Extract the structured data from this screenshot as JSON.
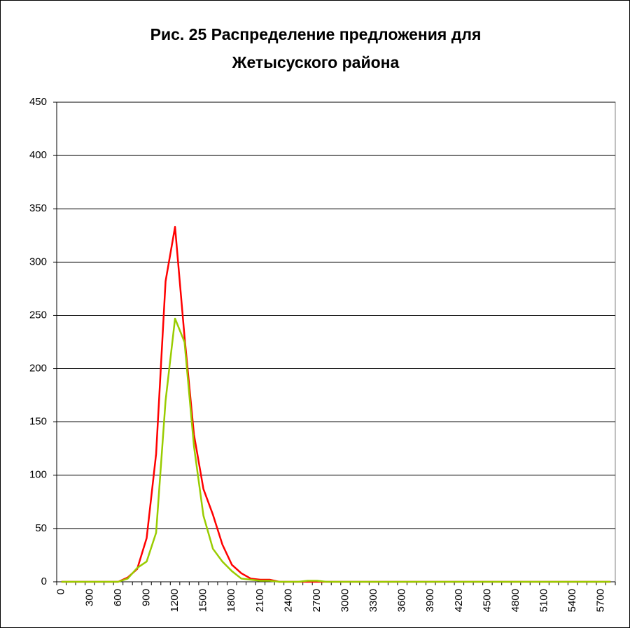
{
  "chart_data": {
    "type": "line",
    "title": "Рис. 25 Распределение предложения для Жетысуского района",
    "categories": [
      0,
      null,
      null,
      300,
      null,
      null,
      600,
      null,
      null,
      900,
      null,
      null,
      1200,
      null,
      null,
      1500,
      null,
      null,
      1800,
      null,
      null,
      2100,
      null,
      null,
      2400,
      null,
      null,
      2700,
      null,
      null,
      3000,
      null,
      null,
      3300,
      null,
      null,
      3600,
      null,
      null,
      3900,
      null,
      null,
      4200,
      null,
      null,
      4500,
      null,
      null,
      4800,
      null,
      null,
      5100,
      null,
      null,
      5400,
      null,
      null,
      5700,
      null
    ],
    "series": [
      {
        "color": "#ff0000",
        "values": [
          0,
          0,
          0,
          0,
          0,
          0,
          0,
          4,
          12,
          41,
          120,
          282,
          333,
          230,
          138,
          87,
          63,
          35,
          16,
          8,
          3,
          2,
          2,
          0,
          0,
          0,
          0,
          0,
          0,
          0,
          0,
          0,
          0,
          0,
          0,
          0,
          0,
          0,
          0,
          0,
          0,
          0,
          0,
          0,
          0,
          0,
          0,
          0,
          0,
          0,
          0,
          0,
          0,
          0,
          0,
          0,
          0,
          0,
          0
        ]
      },
      {
        "color": "#99cc00",
        "values": [
          0,
          0,
          0,
          0,
          0,
          0,
          0,
          3,
          13,
          19,
          46,
          170,
          247,
          225,
          127,
          62,
          31,
          19,
          10,
          3,
          2,
          1,
          1,
          0,
          0,
          0,
          1,
          1,
          0,
          0,
          0,
          0,
          0,
          0,
          0,
          0,
          0,
          0,
          0,
          0,
          0,
          0,
          0,
          0,
          0,
          0,
          0,
          0,
          0,
          0,
          0,
          0,
          0,
          0,
          0,
          0,
          0,
          0,
          0
        ]
      }
    ],
    "ylim": [
      0,
      450
    ],
    "yticks": [
      0,
      50,
      100,
      150,
      200,
      250,
      300,
      350,
      400,
      450
    ],
    "grid": true
  }
}
